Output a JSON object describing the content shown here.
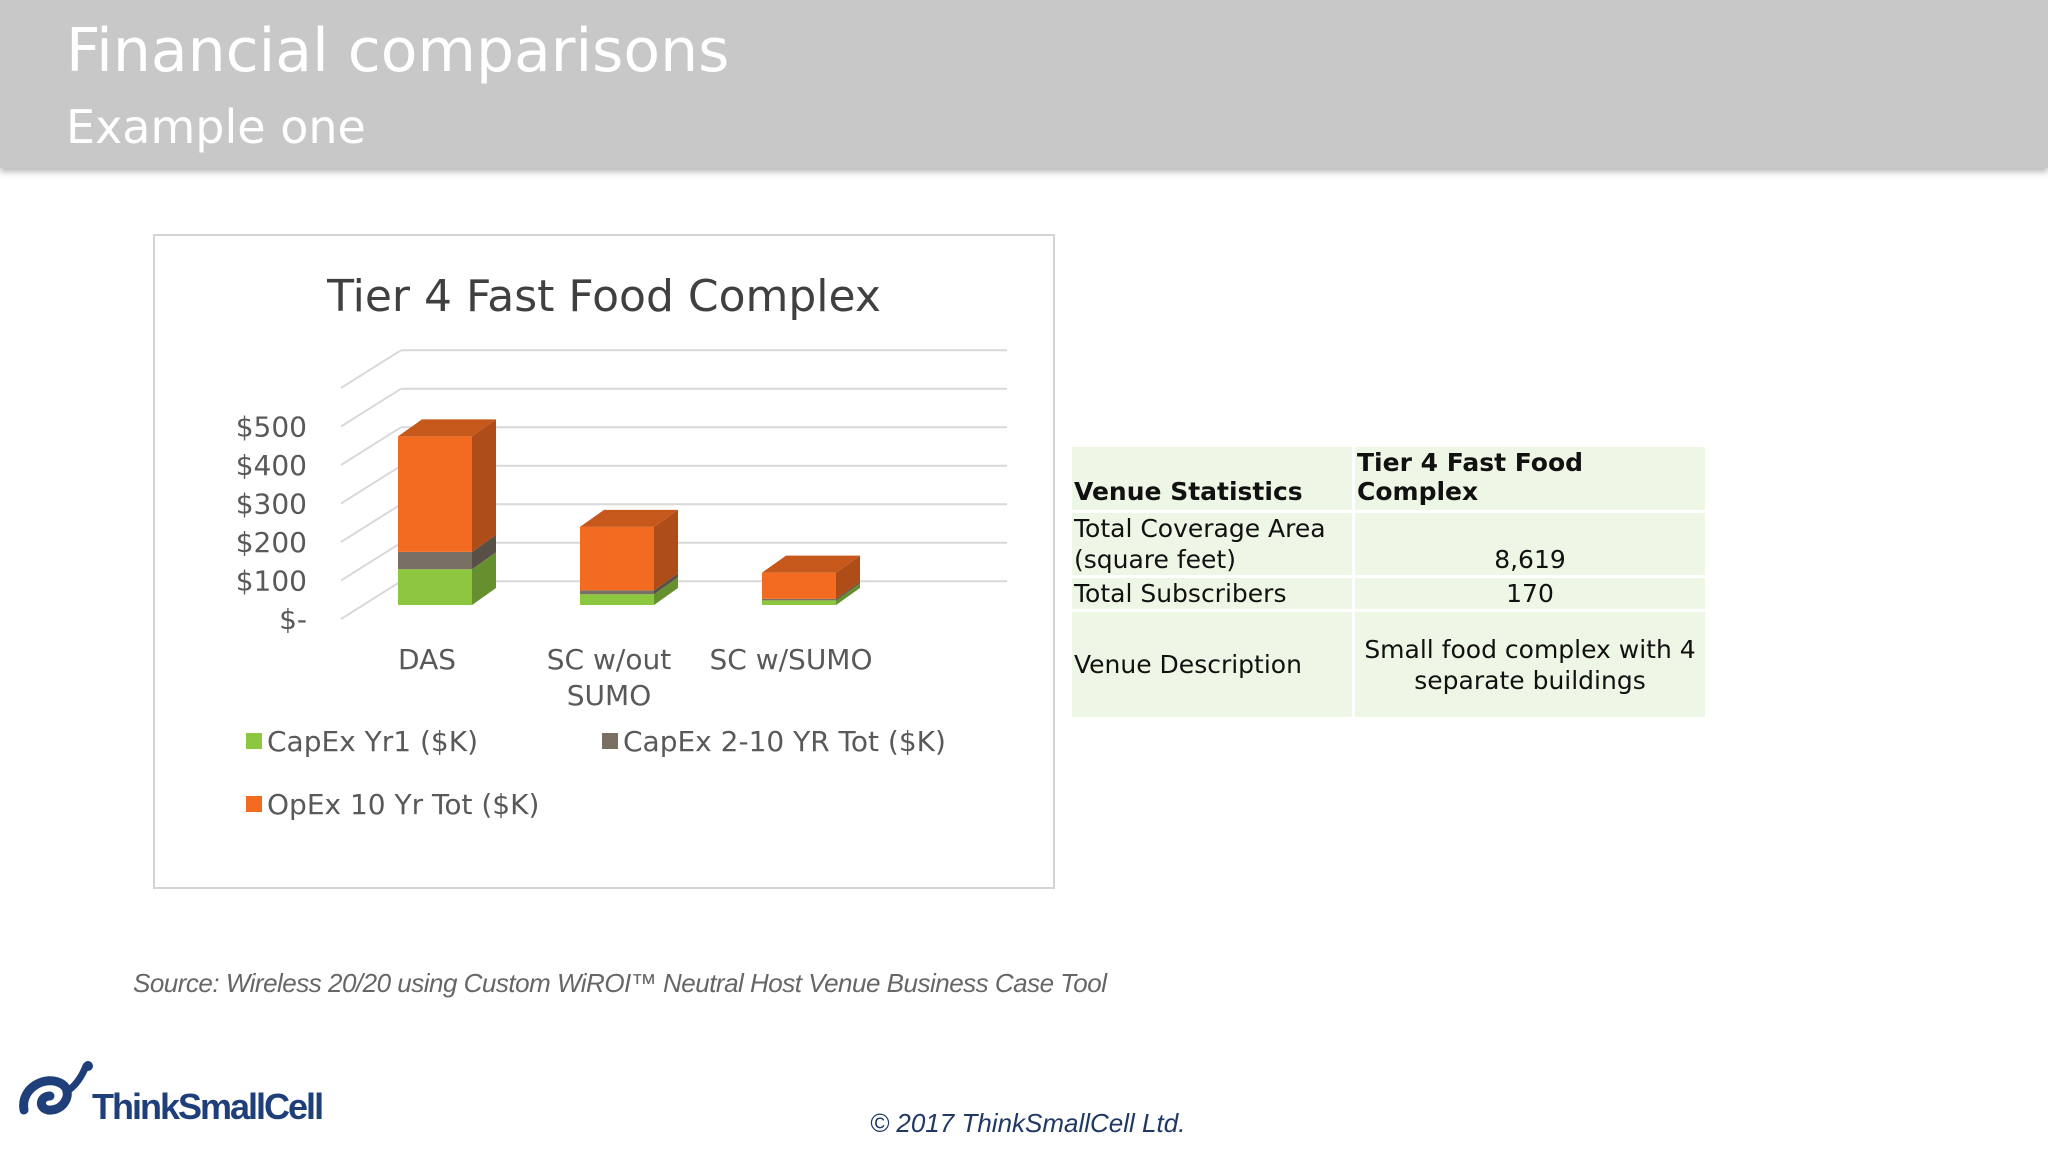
{
  "header": {
    "title": "Financial comparisons",
    "subtitle": "Example one"
  },
  "chart_data": {
    "type": "bar",
    "stacked": true,
    "three_d": true,
    "title": "Tier 4 Fast Food Complex",
    "xlabel": "",
    "ylabel": "",
    "categories": [
      "DAS",
      "SC w/out SUMO",
      "SC w/SUMO"
    ],
    "y_ticks": [
      0,
      100,
      200,
      300,
      400,
      500
    ],
    "y_tick_labels": [
      "$-",
      "$100",
      "$200",
      "$300",
      "$400",
      "$500"
    ],
    "ylim": [
      0,
      600
    ],
    "grid": true,
    "legend_position": "bottom",
    "series": [
      {
        "name": "CapEx Yr1 ($K)",
        "color": "#8dc63f",
        "values": [
          93,
          28,
          12
        ]
      },
      {
        "name": "CapEx 2-10 YR Tot ($K)",
        "color": "#7a6f63",
        "values": [
          45,
          10,
          4
        ]
      },
      {
        "name": "OpEx 10 Yr  Tot ($K)",
        "color": "#f26b21",
        "values": [
          300,
          165,
          68
        ]
      }
    ]
  },
  "venue_table": {
    "header": [
      "Venue Statistics",
      "Tier 4 Fast Food Complex"
    ],
    "rows": [
      {
        "label": "Total Coverage Area (square feet)",
        "value": "8,619"
      },
      {
        "label": "Total Subscribers",
        "value": "170"
      },
      {
        "label": "Venue Description",
        "value": "Small food complex with 4 separate buildings"
      }
    ]
  },
  "source_note": "Source: Wireless 20/20 using Custom WiROI™ Neutral Host Venue Business Case Tool",
  "copyright": "© 2017 ThinkSmallCell Ltd.",
  "logo_text": "ThinkSmallCell",
  "colors": {
    "header_bg": "#c8c8c8",
    "capex_yr1": "#8dc63f",
    "capex_2_10": "#7a6f63",
    "opex": "#f26b21"
  }
}
